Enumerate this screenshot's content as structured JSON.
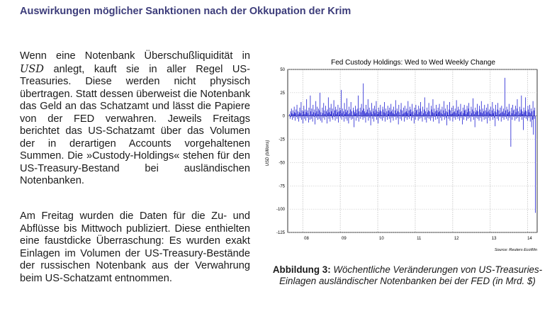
{
  "header": {
    "title": "Auswirkungen möglicher Sanktionen nach der Okkupation der Krim"
  },
  "body": {
    "p1_pre": "Wenn eine Notenbank Überschußliquidität in",
    "p1_usd": "USD",
    "p1_post": " anlegt, kauft sie in aller Regel US-Treasuries. Diese werden nicht physisch übertragen. Statt dessen überweist die Notenbank das Geld an das Schatzamt und lässt die Papiere von der FED verwahren. Jeweils Freitags berichtet das US-Schatzamt über das Volumen der in derartigen Accounts vorgehaltenen Summen. Die »Custody-Holdings« stehen für den US-Treasury-Bestand bei ausländischen Notenbanken.",
    "p2": "Am Freitag wurden die Daten für die Zu- und Abflüsse bis Mittwoch publiziert. Diese enthielten eine faustdicke Überraschung: Es wurden exakt Einlagen im Volumen der US-Treasury-Bestände der russischen Notenbank aus der Verwahrung beim US-Schatzamt entnommen."
  },
  "chart_data": {
    "type": "bar",
    "title": "Fed Custody Holdings: Wed to Wed Weekly Change",
    "ylabel": "USD (billions)",
    "source": "Source: Reuters EcoWin",
    "ylim": [
      -125,
      50
    ],
    "yticks": [
      50,
      25,
      0,
      -25,
      -50,
      -75,
      -100,
      -125
    ],
    "xticks": [
      "08",
      "09",
      "10",
      "11",
      "12",
      "13",
      "14"
    ],
    "color": "#0000cc",
    "grid": "dashed vertical and horizontal",
    "x_start": 2007.6,
    "x_end": 2014.25,
    "values": [
      2,
      -3,
      5,
      -1,
      8,
      3,
      -4,
      6,
      2,
      -2,
      10,
      4,
      -5,
      3,
      7,
      -1,
      12,
      -3,
      5,
      2,
      -6,
      4,
      9,
      -2,
      3,
      15,
      -4,
      6,
      1,
      -8,
      5,
      11,
      -3,
      2,
      7,
      -5,
      4,
      18,
      -2,
      6,
      3,
      -7,
      9,
      1,
      -4,
      22,
      5,
      -3,
      8,
      2,
      -6,
      12,
      4,
      -1,
      7,
      -9,
      3,
      16,
      -2,
      5,
      10,
      -4,
      2,
      8,
      -3,
      6,
      25,
      -5,
      4,
      1,
      -7,
      9,
      3,
      -2,
      14,
      6,
      -4,
      2,
      11,
      -1,
      5,
      -8,
      7,
      3,
      20,
      -3,
      4,
      9,
      -6,
      2,
      13,
      5,
      -2,
      8,
      -4,
      3,
      17,
      -1,
      6,
      -5,
      10,
      2,
      7,
      -3,
      4,
      12,
      -7,
      5,
      1,
      9,
      -2,
      6,
      28,
      -4,
      3,
      8,
      -1,
      5,
      -6,
      14,
      2,
      7,
      -3,
      4,
      19,
      -5,
      6,
      2,
      -8,
      10,
      3,
      -2,
      7,
      15,
      -4,
      5,
      1,
      -3,
      9,
      6,
      -12,
      4,
      2,
      11,
      -5,
      7,
      3,
      -2,
      8,
      22,
      -6,
      5,
      1,
      9,
      -3,
      4,
      13,
      -1,
      6,
      -4,
      35,
      8,
      -2,
      5,
      3,
      -7,
      12,
      4,
      -1,
      7,
      18,
      -5,
      3,
      9,
      -2,
      6,
      -10,
      4,
      14,
      2,
      -3,
      8,
      5,
      -6,
      11,
      3,
      -1,
      7,
      16,
      -4,
      5,
      2,
      -8,
      9,
      4,
      -2,
      6,
      12,
      -3,
      5,
      1,
      -5,
      10,
      7,
      -2,
      4,
      15,
      -6,
      3,
      8,
      -1,
      5,
      -4,
      11,
      2,
      6,
      -3,
      9,
      4,
      -7,
      13,
      5,
      -2,
      7,
      3,
      -5,
      10,
      2,
      -1,
      6,
      17,
      -4,
      3,
      8,
      -2,
      5,
      -9,
      12,
      4,
      1,
      -3,
      7,
      14,
      -5,
      6,
      2,
      -1,
      9,
      3,
      -6,
      11,
      4,
      -2,
      5,
      8,
      -4,
      3,
      16,
      -1,
      6,
      -3,
      10,
      2,
      7,
      -5,
      4,
      13,
      -2,
      5,
      1,
      -8,
      9,
      3,
      -4,
      12,
      6,
      -1,
      7,
      2,
      -5,
      11,
      4,
      -3,
      8,
      15,
      -2,
      5,
      1,
      -6,
      10,
      3,
      -1,
      7,
      20,
      -4,
      5,
      2,
      -7,
      9,
      4,
      -2,
      6,
      14,
      -3,
      5,
      1,
      -5,
      11,
      7,
      -2,
      4,
      18,
      -6,
      3,
      8,
      -1,
      5,
      -4,
      12,
      2,
      6,
      -3,
      9,
      4,
      -8,
      13,
      5,
      -2,
      7,
      3,
      -5,
      10,
      2,
      -1,
      6,
      16,
      -4,
      3,
      8,
      -2,
      5,
      -10,
      12,
      4,
      1,
      -3,
      7,
      15,
      -5,
      6,
      2,
      -1,
      9,
      3,
      -6,
      11,
      4,
      -2,
      5,
      8,
      -4,
      3,
      17,
      -1,
      6,
      -3,
      10,
      2,
      7,
      -5,
      4,
      13,
      -2,
      5,
      1,
      -9,
      9,
      3,
      -4,
      12,
      6,
      -1,
      7,
      2,
      -5,
      11,
      4,
      -3,
      8,
      14,
      -2,
      5,
      1,
      -6,
      10,
      3,
      -1,
      7,
      19,
      -4,
      5,
      2,
      -12,
      9,
      4,
      -2,
      6,
      13,
      -3,
      5,
      1,
      -5,
      11,
      7,
      -2,
      4,
      16,
      -6,
      3,
      8,
      -1,
      5,
      -4,
      12,
      2,
      6,
      -3,
      9,
      4,
      -8,
      13,
      5,
      -2,
      7,
      3,
      -5,
      10,
      2,
      -1,
      6,
      15,
      -4,
      3,
      8,
      -2,
      5,
      -11,
      12,
      4,
      1,
      -3,
      7,
      14,
      -5,
      6,
      2,
      -1,
      9,
      3,
      -6,
      11,
      4,
      -2,
      5,
      8,
      -4,
      3,
      41,
      -1,
      6,
      -3,
      10,
      2,
      7,
      -5,
      4,
      13,
      -2,
      5,
      1,
      -33,
      9,
      3,
      -4,
      12,
      6,
      -1,
      7,
      2,
      -5,
      11,
      4,
      -3,
      8,
      18,
      -2,
      5,
      1,
      -6,
      10,
      3,
      -1,
      7,
      22,
      -4,
      5,
      2,
      -15,
      9,
      4,
      -2,
      6,
      20,
      -3,
      5,
      1,
      -5,
      11,
      7,
      -2,
      4,
      12,
      -6,
      3,
      8,
      -12,
      5,
      -4,
      16,
      -20,
      6,
      -3,
      9,
      -104
    ]
  },
  "caption": {
    "label": "Abbildung 3:",
    "text": "Wöchentliche Veränderungen von US-Treasuries-Einlagen ausländischer Notenbanken bei der FED (in Mrd. $)"
  }
}
